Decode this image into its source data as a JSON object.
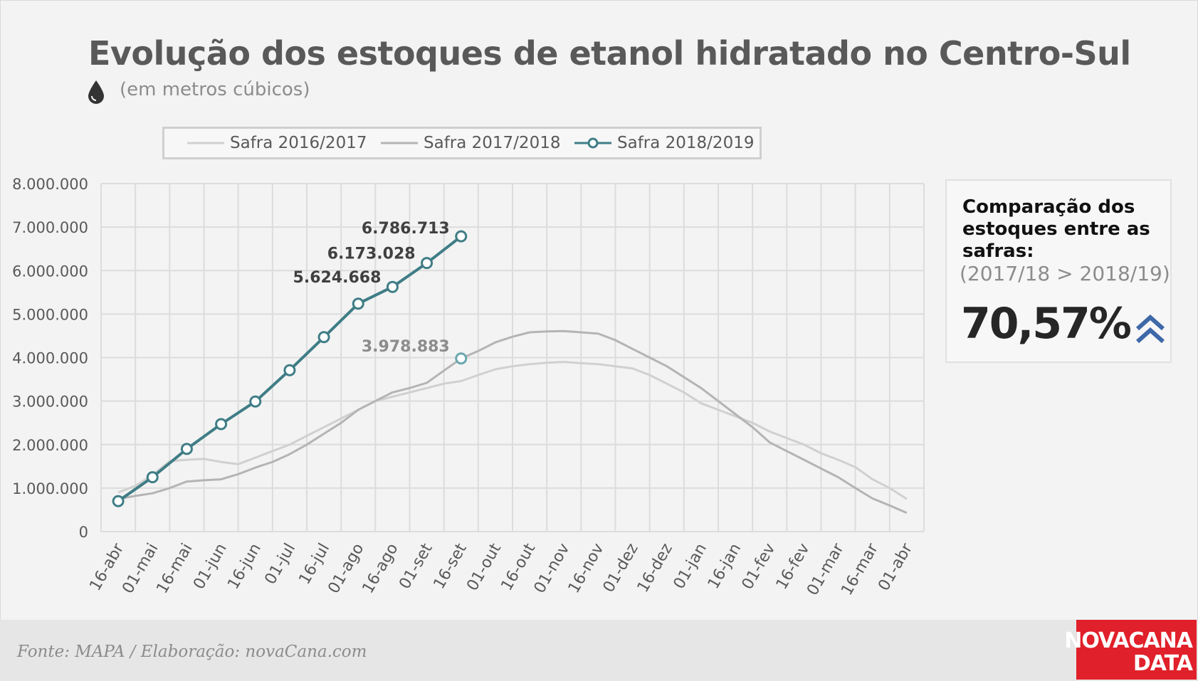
{
  "header": {
    "title": "Evolução dos estoques de etanol hidratado no Centro-Sul",
    "subtitle": "(em metros cúbicos)",
    "icon": "drop-icon"
  },
  "legend": {
    "items": [
      "Safra 2016/2017",
      "Safra 2017/2018",
      "Safra 2018/2019"
    ]
  },
  "side_panel": {
    "heading": "Comparação dos estoques entre as safras:",
    "comparison": "(2017/18 > 2018/19)",
    "value": "70,57%",
    "icon": "double-chevron-up-icon"
  },
  "footer": {
    "source": "Fonte: MAPA  / Elaboração: novaCana.com",
    "logo_line1": "NOVACANA",
    "logo_line2": "DATA"
  },
  "colors": {
    "s2016": "#d0d0d0",
    "s2017": "#b4b4b4",
    "s2018": "#3f7d86",
    "marker_last": "#6aa6ad",
    "grid": "#dcdcdc",
    "chevron": "#3e68a8",
    "logo_bg": "#e0202a"
  },
  "chart_data": {
    "type": "line",
    "title": "Evolução dos estoques de etanol hidratado no Centro-Sul",
    "subtitle": "(em metros cúbicos)",
    "categories": [
      "16-abr",
      "01-mai",
      "16-mai",
      "01-jun",
      "16-jun",
      "01-jul",
      "16-jul",
      "01-ago",
      "16-ago",
      "01-set",
      "16-set",
      "01-out",
      "16-out",
      "01-nov",
      "16-nov",
      "01-dez",
      "16-dez",
      "01-jan",
      "16-jan",
      "01-fev",
      "16-fev",
      "01-mar",
      "16-mar",
      "01-abr"
    ],
    "yticks": [
      "0",
      "1.000.000",
      "2.000.000",
      "3.000.000",
      "4.000.000",
      "5.000.000",
      "6.000.000",
      "7.000.000",
      "8.000.000"
    ],
    "ylim": [
      0,
      8000000
    ],
    "grid": true,
    "legend_position": "top",
    "series": [
      {
        "name": "Safra 2016/2017",
        "x": [
          0,
          0.5,
          1,
          1.5,
          2,
          2.5,
          3,
          3.5,
          4,
          4.5,
          5,
          5.5,
          6,
          6.5,
          7,
          7.5,
          8,
          8.5,
          9,
          9.5,
          10,
          10.5,
          11,
          11.5,
          12,
          12.5,
          13,
          13.5,
          14,
          14.5,
          15,
          15.5,
          16,
          16.5,
          17,
          17.5,
          18,
          18.5,
          19,
          19.5,
          20,
          20.5,
          21,
          21.5,
          22,
          22.5,
          23
        ],
        "values": [
          900000,
          1050000,
          1300000,
          1620000,
          1650000,
          1670000,
          1600000,
          1550000,
          1700000,
          1850000,
          2000000,
          2200000,
          2400000,
          2600000,
          2800000,
          3000000,
          3100000,
          3200000,
          3300000,
          3400000,
          3460000,
          3600000,
          3730000,
          3800000,
          3850000,
          3880000,
          3900000,
          3870000,
          3850000,
          3800000,
          3750000,
          3600000,
          3400000,
          3200000,
          2950000,
          2800000,
          2650000,
          2500000,
          2300000,
          2150000,
          2000000,
          1800000,
          1650000,
          1480000,
          1200000,
          1000000,
          750000
        ]
      },
      {
        "name": "Safra 2017/2018",
        "x": [
          0,
          0.5,
          1,
          1.5,
          2,
          2.5,
          3,
          3.5,
          4,
          4.5,
          5,
          5.5,
          6,
          6.5,
          7,
          7.5,
          8,
          8.5,
          9,
          9.5,
          10,
          10.5,
          11,
          11.5,
          12,
          12.5,
          13,
          13.5,
          14,
          14.5,
          15,
          15.5,
          16,
          16.5,
          17,
          17.5,
          18,
          18.5,
          19,
          19.5,
          20,
          20.5,
          21,
          21.5,
          22,
          22.5,
          23
        ],
        "values": [
          750000,
          820000,
          880000,
          1000000,
          1150000,
          1180000,
          1200000,
          1320000,
          1470000,
          1600000,
          1780000,
          2000000,
          2250000,
          2500000,
          2800000,
          3000000,
          3200000,
          3300000,
          3420000,
          3700000,
          3978883,
          4150000,
          4350000,
          4480000,
          4580000,
          4600000,
          4610000,
          4580000,
          4550000,
          4400000,
          4200000,
          4000000,
          3800000,
          3550000,
          3300000,
          3000000,
          2700000,
          2400000,
          2050000,
          1850000,
          1650000,
          1450000,
          1250000,
          1000000,
          760000,
          600000,
          430000
        ]
      },
      {
        "name": "Safra 2018/2019",
        "x": [
          0,
          1,
          2,
          3,
          4,
          5,
          6,
          7,
          8,
          9,
          10
        ],
        "values": [
          700000,
          1250000,
          1900000,
          2470000,
          2990000,
          3710000,
          4470000,
          5240000,
          5624668,
          6173028,
          6786713
        ]
      }
    ],
    "annotations": [
      {
        "text": "6.786.713",
        "series": "Safra 2018/2019",
        "x": 10,
        "y": 6786713
      },
      {
        "text": "6.173.028",
        "series": "Safra 2018/2019",
        "x": 9,
        "y": 6173028
      },
      {
        "text": "5.624.668",
        "series": "Safra 2018/2019",
        "x": 8,
        "y": 5624668
      },
      {
        "text": "3.978.883",
        "series": "Safra 2017/2018",
        "x": 10,
        "y": 3978883
      }
    ]
  }
}
